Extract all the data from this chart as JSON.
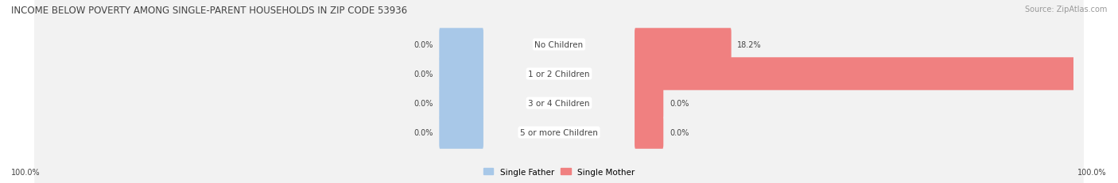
{
  "title": "INCOME BELOW POVERTY AMONG SINGLE-PARENT HOUSEHOLDS IN ZIP CODE 53936",
  "source": "Source: ZipAtlas.com",
  "categories": [
    "No Children",
    "1 or 2 Children",
    "3 or 4 Children",
    "5 or more Children"
  ],
  "single_father": [
    0.0,
    0.0,
    0.0,
    0.0
  ],
  "single_mother": [
    18.2,
    100.0,
    0.0,
    0.0
  ],
  "father_color": "#a8c8e8",
  "mother_color": "#f08080",
  "row_bg_color": "#f2f2f2",
  "father_label": "Single Father",
  "mother_label": "Single Mother",
  "left_label": "100.0%",
  "right_label": "100.0%",
  "title_fontsize": 8.5,
  "cat_fontsize": 7.5,
  "val_fontsize": 7.0,
  "source_fontsize": 7.0,
  "legend_fontsize": 7.5,
  "figsize": [
    14.06,
    2.32
  ],
  "dpi": 100,
  "max_val": 100.0,
  "label_zone": 15,
  "stub_father": 8,
  "stub_mother": 5,
  "bg_color": "#ffffff",
  "text_color": "#444444",
  "source_color": "#999999"
}
